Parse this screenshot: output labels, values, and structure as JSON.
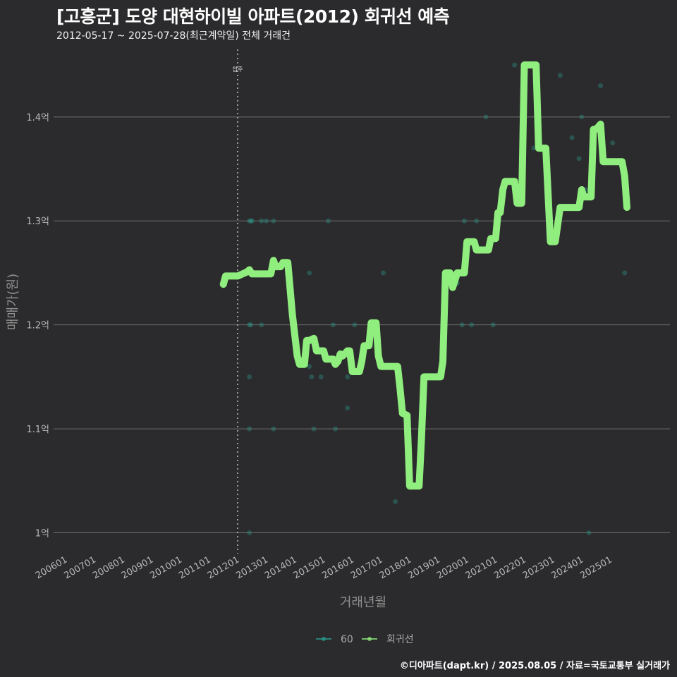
{
  "header": {
    "title": "[고흥군] 도양 대현하이빌 아파트(2012) 회귀선 예측",
    "subtitle": "2012-05-17 ~ 2025-07-28(최근계약일) 전체 거래건"
  },
  "footer": {
    "credit": "©디아파트(dapt.kr) / 2025.08.05 / 자료=국토교통부 실거래가"
  },
  "colors": {
    "background": "#2b2b2d",
    "grid": "#6e6e6e",
    "scatter": "#2a9d8f",
    "line": "#90ee7e",
    "vline": "#bdbdbd"
  },
  "chart_data": {
    "type": "scatter+line",
    "xlabel": "거래년월",
    "ylabel": "매매가(원)",
    "x_range": [
      2005.5,
      2027.0
    ],
    "ylim": [
      0.98,
      1.465
    ],
    "y_ticks": [
      {
        "value": 1.0,
        "label": "1억"
      },
      {
        "value": 1.1,
        "label": "1.1억"
      },
      {
        "value": 1.2,
        "label": "1.2억"
      },
      {
        "value": 1.3,
        "label": "1.3억"
      },
      {
        "value": 1.4,
        "label": "1.4억"
      }
    ],
    "x_ticks": [
      {
        "value": 2006.0,
        "label": "200601"
      },
      {
        "value": 2007.0,
        "label": "200701"
      },
      {
        "value": 2008.0,
        "label": "200801"
      },
      {
        "value": 2009.0,
        "label": "200901"
      },
      {
        "value": 2010.0,
        "label": "201001"
      },
      {
        "value": 2011.0,
        "label": "201101"
      },
      {
        "value": 2012.0,
        "label": "201201"
      },
      {
        "value": 2013.0,
        "label": "201301"
      },
      {
        "value": 2014.0,
        "label": "201401"
      },
      {
        "value": 2015.0,
        "label": "201501"
      },
      {
        "value": 2016.0,
        "label": "201601"
      },
      {
        "value": 2017.0,
        "label": "201701"
      },
      {
        "value": 2018.0,
        "label": "201801"
      },
      {
        "value": 2019.0,
        "label": "201901"
      },
      {
        "value": 2020.0,
        "label": "202001"
      },
      {
        "value": 2021.0,
        "label": "202101"
      },
      {
        "value": 2022.0,
        "label": "202201"
      },
      {
        "value": 2023.0,
        "label": "202301"
      },
      {
        "value": 2024.0,
        "label": "202401"
      },
      {
        "value": 2025.0,
        "label": "202501"
      }
    ],
    "annotation": {
      "x": 2011.92,
      "label": "입주"
    },
    "legend": [
      {
        "name": "60",
        "kind": "scatter"
      },
      {
        "name": "회귀선",
        "kind": "line"
      }
    ],
    "scatter_points": [
      {
        "x": 2012.33,
        "y": 1.3
      },
      {
        "x": 2012.38,
        "y": 1.3
      },
      {
        "x": 2012.42,
        "y": 1.3
      },
      {
        "x": 2012.75,
        "y": 1.3
      },
      {
        "x": 2012.92,
        "y": 1.3
      },
      {
        "x": 2013.17,
        "y": 1.3
      },
      {
        "x": 2012.33,
        "y": 1.2
      },
      {
        "x": 2012.38,
        "y": 1.2
      },
      {
        "x": 2012.75,
        "y": 1.2
      },
      {
        "x": 2012.33,
        "y": 1.15
      },
      {
        "x": 2012.33,
        "y": 1.1
      },
      {
        "x": 2013.17,
        "y": 1.1
      },
      {
        "x": 2012.33,
        "y": 1.0
      },
      {
        "x": 2014.42,
        "y": 1.25
      },
      {
        "x": 2014.42,
        "y": 1.16
      },
      {
        "x": 2014.5,
        "y": 1.15
      },
      {
        "x": 2014.58,
        "y": 1.1
      },
      {
        "x": 2014.83,
        "y": 1.15
      },
      {
        "x": 2015.08,
        "y": 1.3
      },
      {
        "x": 2015.25,
        "y": 1.2
      },
      {
        "x": 2015.33,
        "y": 1.1
      },
      {
        "x": 2015.75,
        "y": 1.15
      },
      {
        "x": 2015.75,
        "y": 1.12
      },
      {
        "x": 2016.0,
        "y": 1.2
      },
      {
        "x": 2017.0,
        "y": 1.25
      },
      {
        "x": 2017.42,
        "y": 1.03
      },
      {
        "x": 2018.25,
        "y": 1.06
      },
      {
        "x": 2019.58,
        "y": 1.24
      },
      {
        "x": 2019.75,
        "y": 1.2
      },
      {
        "x": 2019.83,
        "y": 1.3
      },
      {
        "x": 2020.08,
        "y": 1.2
      },
      {
        "x": 2020.25,
        "y": 1.3
      },
      {
        "x": 2020.58,
        "y": 1.4
      },
      {
        "x": 2020.83,
        "y": 1.2
      },
      {
        "x": 2021.58,
        "y": 1.45
      },
      {
        "x": 2022.25,
        "y": 1.37
      },
      {
        "x": 2023.17,
        "y": 1.44
      },
      {
        "x": 2023.58,
        "y": 1.38
      },
      {
        "x": 2023.83,
        "y": 1.36
      },
      {
        "x": 2023.92,
        "y": 1.4
      },
      {
        "x": 2024.08,
        "y": 1.33
      },
      {
        "x": 2024.17,
        "y": 1.0
      },
      {
        "x": 2024.58,
        "y": 1.43
      },
      {
        "x": 2025.0,
        "y": 1.375
      },
      {
        "x": 2025.42,
        "y": 1.25
      }
    ],
    "regression_line": [
      [
        2011.42,
        1.239
      ],
      [
        2011.5,
        1.247
      ],
      [
        2011.92,
        1.247
      ],
      [
        2012.25,
        1.251
      ],
      [
        2012.33,
        1.253
      ],
      [
        2012.42,
        1.249
      ],
      [
        2013.08,
        1.249
      ],
      [
        2013.17,
        1.262
      ],
      [
        2013.25,
        1.256
      ],
      [
        2013.42,
        1.256
      ],
      [
        2013.5,
        1.26
      ],
      [
        2013.67,
        1.26
      ],
      [
        2013.83,
        1.21
      ],
      [
        2014.0,
        1.17
      ],
      [
        2014.08,
        1.162
      ],
      [
        2014.25,
        1.162
      ],
      [
        2014.33,
        1.185
      ],
      [
        2014.42,
        1.185
      ],
      [
        2014.58,
        1.187
      ],
      [
        2014.67,
        1.175
      ],
      [
        2014.92,
        1.175
      ],
      [
        2015.0,
        1.167
      ],
      [
        2015.25,
        1.167
      ],
      [
        2015.33,
        1.162
      ],
      [
        2015.42,
        1.165
      ],
      [
        2015.5,
        1.172
      ],
      [
        2015.58,
        1.17
      ],
      [
        2015.75,
        1.175
      ],
      [
        2015.83,
        1.175
      ],
      [
        2015.92,
        1.155
      ],
      [
        2016.17,
        1.155
      ],
      [
        2016.25,
        1.165
      ],
      [
        2016.33,
        1.18
      ],
      [
        2016.5,
        1.18
      ],
      [
        2016.58,
        1.202
      ],
      [
        2016.75,
        1.202
      ],
      [
        2016.83,
        1.17
      ],
      [
        2016.92,
        1.16
      ],
      [
        2017.5,
        1.16
      ],
      [
        2017.58,
        1.14
      ],
      [
        2017.67,
        1.115
      ],
      [
        2017.83,
        1.113
      ],
      [
        2017.92,
        1.045
      ],
      [
        2018.25,
        1.045
      ],
      [
        2018.33,
        1.09
      ],
      [
        2018.42,
        1.15
      ],
      [
        2019.0,
        1.15
      ],
      [
        2019.08,
        1.165
      ],
      [
        2019.17,
        1.25
      ],
      [
        2019.33,
        1.25
      ],
      [
        2019.42,
        1.236
      ],
      [
        2019.58,
        1.25
      ],
      [
        2019.83,
        1.25
      ],
      [
        2019.92,
        1.28
      ],
      [
        2020.17,
        1.28
      ],
      [
        2020.25,
        1.272
      ],
      [
        2020.67,
        1.272
      ],
      [
        2020.75,
        1.283
      ],
      [
        2020.92,
        1.283
      ],
      [
        2021.0,
        1.308
      ],
      [
        2021.08,
        1.308
      ],
      [
        2021.17,
        1.33
      ],
      [
        2021.25,
        1.338
      ],
      [
        2021.58,
        1.338
      ],
      [
        2021.67,
        1.317
      ],
      [
        2021.83,
        1.317
      ],
      [
        2021.92,
        1.45
      ],
      [
        2022.33,
        1.45
      ],
      [
        2022.42,
        1.37
      ],
      [
        2022.67,
        1.37
      ],
      [
        2022.83,
        1.28
      ],
      [
        2023.0,
        1.28
      ],
      [
        2023.17,
        1.313
      ],
      [
        2023.83,
        1.313
      ],
      [
        2023.92,
        1.33
      ],
      [
        2024.0,
        1.323
      ],
      [
        2024.25,
        1.323
      ],
      [
        2024.33,
        1.388
      ],
      [
        2024.42,
        1.388
      ],
      [
        2024.58,
        1.393
      ],
      [
        2024.67,
        1.357
      ],
      [
        2025.33,
        1.357
      ],
      [
        2025.42,
        1.343
      ],
      [
        2025.5,
        1.313
      ]
    ]
  }
}
